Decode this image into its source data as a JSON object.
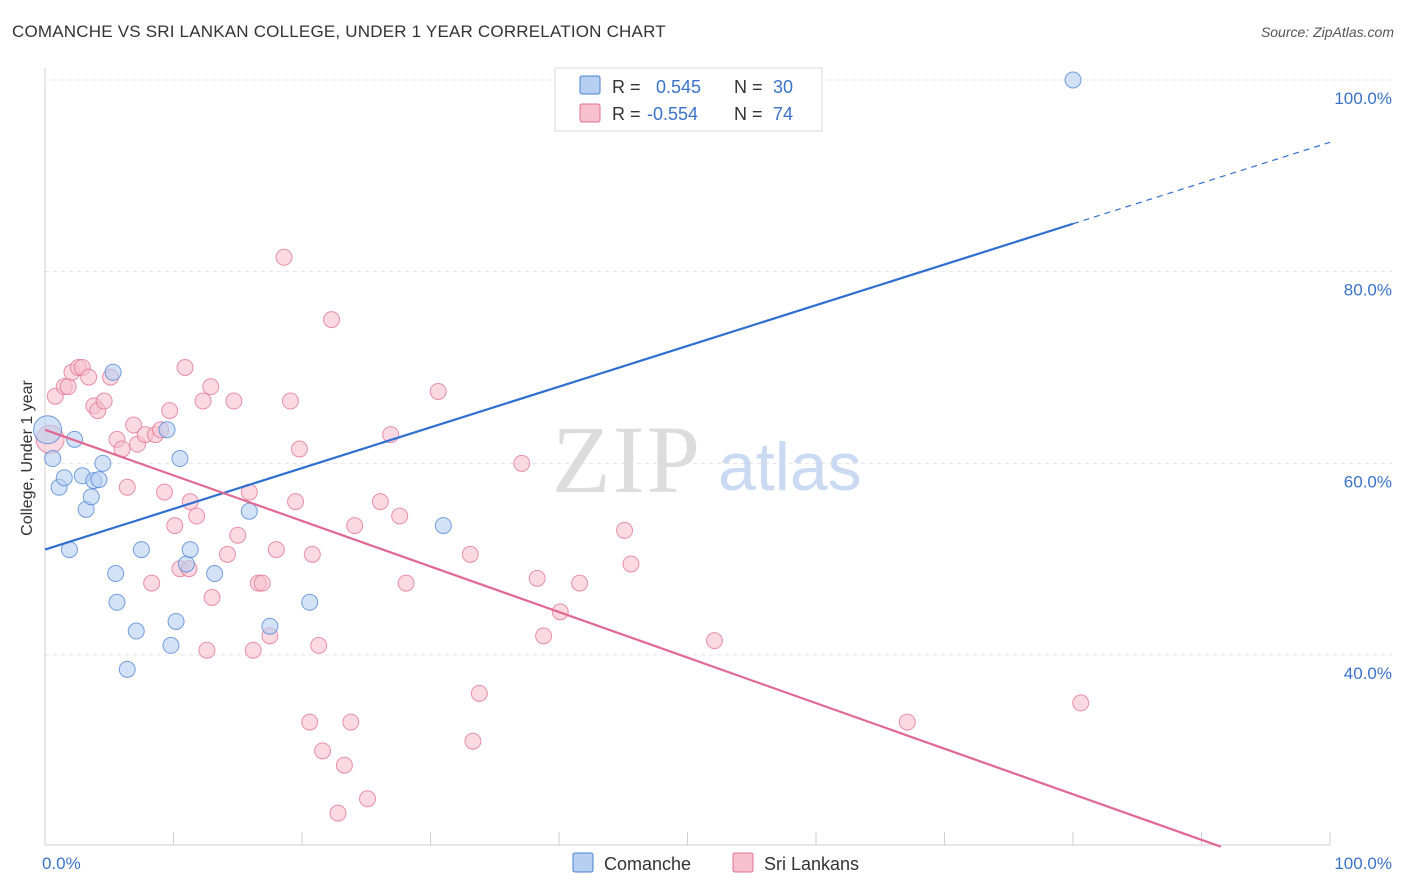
{
  "title": "COMANCHE VS SRI LANKAN COLLEGE, UNDER 1 YEAR CORRELATION CHART",
  "source": "Source: ZipAtlas.com",
  "watermark": {
    "zip": "ZIP",
    "atlas": "atlas"
  },
  "colors": {
    "blue": "#4a82d4",
    "blue_fill": "#b7cff1",
    "pink": "#e0708f",
    "pink_fill": "#f6c0cf",
    "blue_line": "#2f6fd0",
    "pink_line": "#e06891",
    "tick_blue": "#3a72c9"
  },
  "legend": {
    "rows": [
      {
        "r_label": "R =",
        "r_value": "0.545",
        "n_label": "N =",
        "n_value": "30"
      },
      {
        "r_label": "R =",
        "r_value": "-0.554",
        "n_label": "N =",
        "n_value": "74"
      }
    ]
  },
  "bottom_legend": {
    "series1": "Comanche",
    "series2": "Sri Lankans"
  },
  "chart_data": {
    "type": "scatter",
    "xlabel": "",
    "ylabel": "College, Under 1 year",
    "xlim": [
      0,
      100
    ],
    "ylim": [
      20,
      104
    ],
    "x_tick_labels": {
      "left": "0.0%",
      "right": "100.0%"
    },
    "y_ticks": [
      {
        "value": 40,
        "label": "40.0%"
      },
      {
        "value": 60,
        "label": "60.0%"
      },
      {
        "value": 80,
        "label": "80.0%"
      },
      {
        "value": 100,
        "label": "100.0%"
      }
    ],
    "series": [
      {
        "name": "Comanche",
        "trend": {
          "x0": 0,
          "y0": 51,
          "x1": 80,
          "y1": 85,
          "x_dash_end": 100,
          "y_dash_end": 93.5
        },
        "points": [
          [
            0.2,
            63.5
          ],
          [
            0.6,
            60.5
          ],
          [
            1.1,
            57.5
          ],
          [
            1.5,
            58.5
          ],
          [
            1.9,
            51.0
          ],
          [
            2.3,
            62.5
          ],
          [
            2.9,
            58.7
          ],
          [
            3.2,
            55.2
          ],
          [
            3.6,
            56.5
          ],
          [
            3.8,
            58.2
          ],
          [
            4.2,
            58.3
          ],
          [
            4.5,
            60.0
          ],
          [
            5.3,
            69.5
          ],
          [
            5.6,
            45.5
          ],
          [
            5.5,
            48.5
          ],
          [
            6.4,
            38.5
          ],
          [
            7.1,
            42.5
          ],
          [
            7.5,
            51.0
          ],
          [
            9.8,
            41.0
          ],
          [
            10.2,
            43.5
          ],
          [
            9.5,
            63.5
          ],
          [
            10.5,
            60.5
          ],
          [
            11.0,
            49.5
          ],
          [
            11.3,
            51.0
          ],
          [
            13.2,
            48.5
          ],
          [
            15.9,
            55.0
          ],
          [
            17.5,
            43.0
          ],
          [
            20.6,
            45.5
          ],
          [
            31.0,
            53.5
          ],
          [
            80.0,
            100.0
          ]
        ]
      },
      {
        "name": "Sri Lankans",
        "trend": {
          "x0": 0,
          "y0": 63.5,
          "x1": 91.5,
          "y1": 20
        },
        "points": [
          [
            0.4,
            62.5
          ],
          [
            0.8,
            67.0
          ],
          [
            1.5,
            68.0
          ],
          [
            1.8,
            68.0
          ],
          [
            2.1,
            69.5
          ],
          [
            2.6,
            70.0
          ],
          [
            2.9,
            70.0
          ],
          [
            3.4,
            69.0
          ],
          [
            3.8,
            66.0
          ],
          [
            4.1,
            65.5
          ],
          [
            4.6,
            66.5
          ],
          [
            5.1,
            69.0
          ],
          [
            5.6,
            62.5
          ],
          [
            6.0,
            61.5
          ],
          [
            6.4,
            57.5
          ],
          [
            6.9,
            64.0
          ],
          [
            7.2,
            62.0
          ],
          [
            7.8,
            63.0
          ],
          [
            8.3,
            47.5
          ],
          [
            8.6,
            63.0
          ],
          [
            9.0,
            63.5
          ],
          [
            9.3,
            57.0
          ],
          [
            9.7,
            65.5
          ],
          [
            10.1,
            53.5
          ],
          [
            10.5,
            49.0
          ],
          [
            10.9,
            70.0
          ],
          [
            11.2,
            49.0
          ],
          [
            11.3,
            56.0
          ],
          [
            11.8,
            54.5
          ],
          [
            12.3,
            66.5
          ],
          [
            12.6,
            40.5
          ],
          [
            12.9,
            68.0
          ],
          [
            13.0,
            46.0
          ],
          [
            14.2,
            50.5
          ],
          [
            14.7,
            66.5
          ],
          [
            15.0,
            52.5
          ],
          [
            15.9,
            57.0
          ],
          [
            16.2,
            40.5
          ],
          [
            16.6,
            47.5
          ],
          [
            16.9,
            47.5
          ],
          [
            17.5,
            42.0
          ],
          [
            18.0,
            51.0
          ],
          [
            18.6,
            81.5
          ],
          [
            19.1,
            66.5
          ],
          [
            19.5,
            56.0
          ],
          [
            19.8,
            61.5
          ],
          [
            20.6,
            33.0
          ],
          [
            20.8,
            50.5
          ],
          [
            21.3,
            41.0
          ],
          [
            21.6,
            30.0
          ],
          [
            22.3,
            75.0
          ],
          [
            22.8,
            23.5
          ],
          [
            23.3,
            28.5
          ],
          [
            23.8,
            33.0
          ],
          [
            24.1,
            53.5
          ],
          [
            25.1,
            25.0
          ],
          [
            26.1,
            56.0
          ],
          [
            26.9,
            63.0
          ],
          [
            27.6,
            54.5
          ],
          [
            28.1,
            47.5
          ],
          [
            30.6,
            67.5
          ],
          [
            33.1,
            50.5
          ],
          [
            33.3,
            31.0
          ],
          [
            33.8,
            36.0
          ],
          [
            37.1,
            60.0
          ],
          [
            38.3,
            48.0
          ],
          [
            38.8,
            42.0
          ],
          [
            40.1,
            44.5
          ],
          [
            41.6,
            47.5
          ],
          [
            45.1,
            53.0
          ],
          [
            45.6,
            49.5
          ],
          [
            52.1,
            41.5
          ],
          [
            67.1,
            33.0
          ],
          [
            80.6,
            35.0
          ]
        ]
      }
    ]
  }
}
